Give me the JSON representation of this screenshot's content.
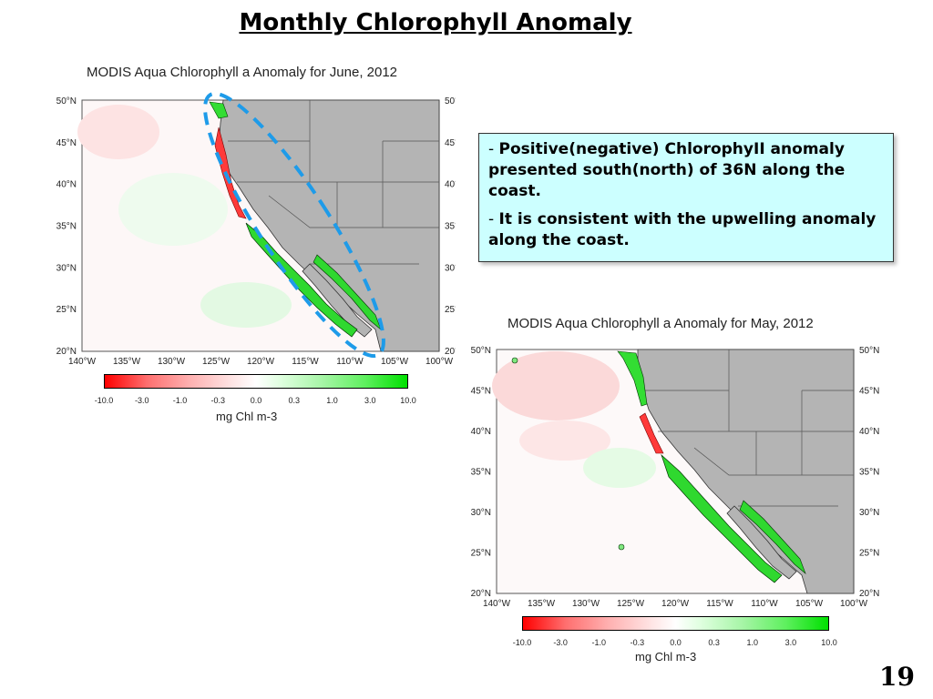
{
  "slide": {
    "title": "Monthly Chlorophyll Anomaly",
    "page_number": "19"
  },
  "note": {
    "bullet1_dash": "-",
    "bullet1_text": "Positive(negative) ChlorophyII anomaly presented south(north) of 36N  along the coast.",
    "bullet2_dash": "-",
    "bullet2_text": "It is consistent with the upwelling anomaly along the coast."
  },
  "maps": {
    "june": {
      "title": "MODIS Aqua Chlorophyll a Anomaly for June, 2012",
      "lat_labels": [
        "50°N",
        "45°N",
        "40°N",
        "35°N",
        "30°N",
        "25°N",
        "20°N"
      ],
      "lon_labels": [
        "140°W",
        "135°W",
        "130°W",
        "125°W",
        "120°W",
        "115°W",
        "110°W",
        "105°W",
        "100°W"
      ],
      "colorbar_ticks": [
        "-10.0",
        "-3.0",
        "-1.0",
        "-0.3",
        "0.0",
        "0.3",
        "1.0",
        "3.0",
        "10.0"
      ],
      "units": "mg Chl m-3",
      "highlight": "dashed-ellipse-along-coast"
    },
    "may": {
      "title": "MODIS Aqua Chlorophyll a Anomaly for May, 2012",
      "lat_labels": [
        "50°N",
        "45°N",
        "40°N",
        "35°N",
        "30°N",
        "25°N",
        "20°N"
      ],
      "lon_labels": [
        "140°W",
        "135°W",
        "130°W",
        "125°W",
        "120°W",
        "115°W",
        "110°W",
        "105°W",
        "100°W"
      ],
      "colorbar_ticks": [
        "-10.0",
        "-3.0",
        "-1.0",
        "-0.3",
        "0.0",
        "0.3",
        "1.0",
        "3.0",
        "10.0"
      ],
      "units": "mg Chl m-3"
    }
  },
  "colors": {
    "negative": "#ff0000",
    "positive": "#00e000",
    "land": "#b4b4b4",
    "highlight": "#1e9be9",
    "note_bg": "#ccffff"
  }
}
